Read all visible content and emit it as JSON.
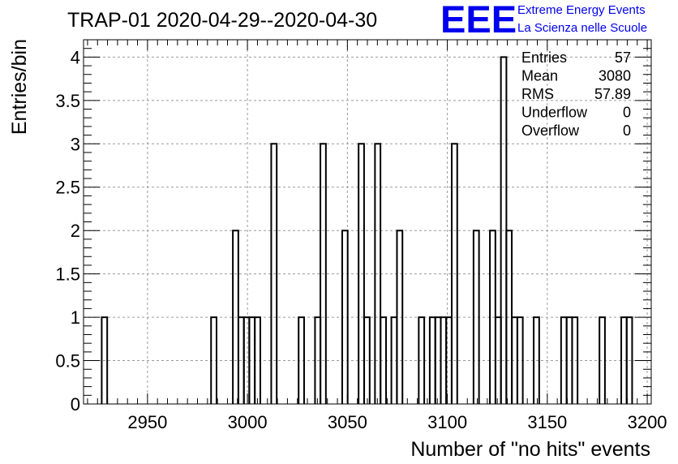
{
  "chart_data": {
    "type": "histogram",
    "title": "TRAP-01 2020-04-29--2020-04-30",
    "xlabel": "Number of \"no hits\" events",
    "ylabel": "Entries/bin",
    "xlim": [
      2918,
      3202
    ],
    "ylim": [
      0,
      4.2
    ],
    "bin_width": 2.74,
    "x_ticks": [
      2950,
      3000,
      3050,
      3100,
      3150,
      3200
    ],
    "y_ticks": [
      0,
      0.5,
      1,
      1.5,
      2,
      2.5,
      3,
      3.5,
      4
    ],
    "grid": true,
    "bins": [
      {
        "x0": 2927.1,
        "y": 1
      },
      {
        "x0": 2981.8,
        "y": 1
      },
      {
        "x0": 2992.7,
        "y": 2
      },
      {
        "x0": 2995.5,
        "y": 1
      },
      {
        "x0": 2998.2,
        "y": 1
      },
      {
        "x0": 3000.9,
        "y": 1
      },
      {
        "x0": 3003.7,
        "y": 1
      },
      {
        "x0": 3011.9,
        "y": 3
      },
      {
        "x0": 3025.6,
        "y": 1
      },
      {
        "x0": 3033.8,
        "y": 1
      },
      {
        "x0": 3036.5,
        "y": 3
      },
      {
        "x0": 3047.4,
        "y": 2
      },
      {
        "x0": 3055.6,
        "y": 3
      },
      {
        "x0": 3058.4,
        "y": 1
      },
      {
        "x0": 3063.8,
        "y": 3
      },
      {
        "x0": 3066.6,
        "y": 1
      },
      {
        "x0": 3072.0,
        "y": 1
      },
      {
        "x0": 3074.8,
        "y": 2
      },
      {
        "x0": 3085.7,
        "y": 1
      },
      {
        "x0": 3091.2,
        "y": 1
      },
      {
        "x0": 3094.0,
        "y": 1
      },
      {
        "x0": 3096.7,
        "y": 1
      },
      {
        "x0": 3099.4,
        "y": 1
      },
      {
        "x0": 3102.2,
        "y": 3
      },
      {
        "x0": 3113.1,
        "y": 2
      },
      {
        "x0": 3121.3,
        "y": 2
      },
      {
        "x0": 3124.1,
        "y": 1
      },
      {
        "x0": 3126.8,
        "y": 4
      },
      {
        "x0": 3129.5,
        "y": 2
      },
      {
        "x0": 3132.3,
        "y": 1
      },
      {
        "x0": 3135.0,
        "y": 1
      },
      {
        "x0": 3143.2,
        "y": 1
      },
      {
        "x0": 3156.9,
        "y": 1
      },
      {
        "x0": 3159.7,
        "y": 1
      },
      {
        "x0": 3162.4,
        "y": 1
      },
      {
        "x0": 3176.1,
        "y": 1
      },
      {
        "x0": 3187.0,
        "y": 1
      },
      {
        "x0": 3189.7,
        "y": 1
      }
    ],
    "stats": [
      {
        "label": "Entries",
        "value": "57"
      },
      {
        "label": "Mean",
        "value": "3080"
      },
      {
        "label": "RMS",
        "value": "57.89"
      },
      {
        "label": "Underflow",
        "value": "0"
      },
      {
        "label": "Overflow",
        "value": "0"
      }
    ]
  },
  "logo": {
    "mark": "EEE",
    "line1": "Extreme Energy Events",
    "line2": "La Scienza nelle Scuole",
    "color": "#0000ee"
  },
  "colors": {
    "line": "#000000",
    "grid": "#9a9a9a",
    "background": "#ffffff"
  }
}
